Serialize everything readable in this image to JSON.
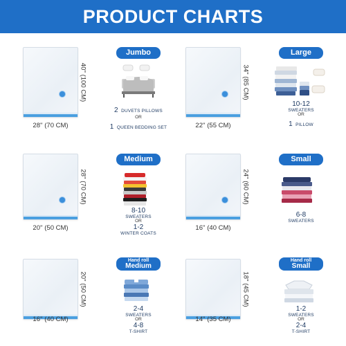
{
  "header": {
    "title": "PRODUCT CHARTS"
  },
  "sizes": [
    {
      "label": "Jumbo",
      "width": "28'' (70 CM)",
      "height": "40'' (100 CM)",
      "cap1_num": "2",
      "cap1_text": "DUVETS PILLOWS",
      "or": "OR",
      "cap2_num": "1",
      "cap2_text": "QUEEN BEDDING SET"
    },
    {
      "label": "Large",
      "width": "22'' (55 CM)",
      "height": "34'' (85 CM)",
      "cap1_num": "10-12",
      "cap1_text": "SWEATERS",
      "or": "OR",
      "cap2_num": "1",
      "cap2_text": "PILLOW"
    },
    {
      "label": "Medium",
      "width": "20'' (50 CM)",
      "height": "28'' (70 CM)",
      "cap1_num": "8-10",
      "cap1_text": "SWEATERS",
      "or": "OR",
      "cap2_num": "1-2",
      "cap2_text": "WINTER COATS"
    },
    {
      "label": "Small",
      "width": "16'' (40 CM)",
      "height": "24'' (60 CM)",
      "cap1_num": "6-8",
      "cap1_text": "SWEATERS"
    },
    {
      "label_top": "Hand roll",
      "label": "Medium",
      "width": "16'' (40 CM)",
      "height": "20'' (50 CM)",
      "cap1_num": "2-4",
      "cap1_text": "SWEATERS",
      "or": "OR",
      "cap2_num": "4-8",
      "cap2_text": "T-SHIRT"
    },
    {
      "label_top": "Hand roll",
      "label": "Small",
      "width": "14'' (35 CM)",
      "height": "18'' (45 CM)",
      "cap1_num": "1-2",
      "cap1_text": "SWEATERS",
      "or": "OR",
      "cap2_num": "2-4",
      "cap2_text": "T-SHIRT"
    }
  ],
  "icons": [
    "bed-icon",
    "folded-clothes-icon",
    "pillow-icon",
    "sweater-stack-icon",
    "shirt-stack-icon"
  ],
  "colors": {
    "brand_blue": "#1f6fc7",
    "seal_blue": "#4a9fe0",
    "text_navy": "#1f3b63"
  }
}
